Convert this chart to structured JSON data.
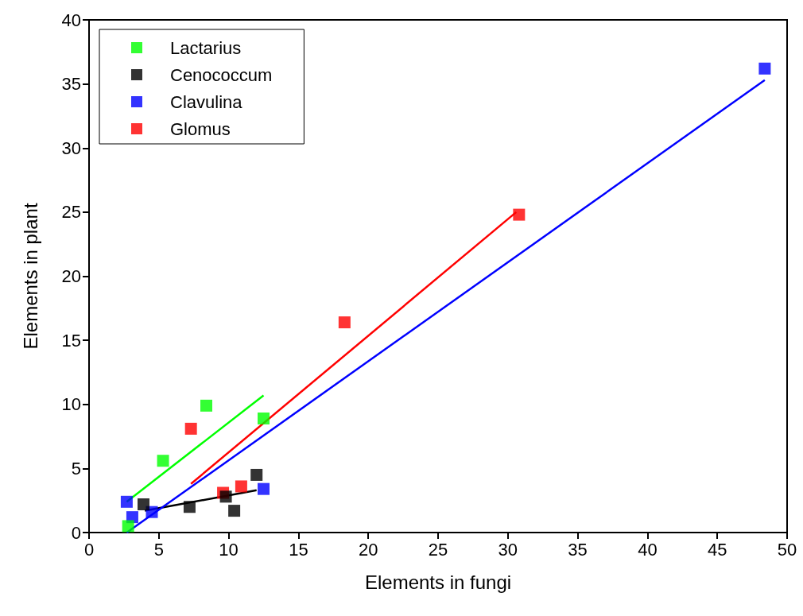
{
  "chart_data": {
    "type": "scatter",
    "xlabel": "Elements in fungi",
    "ylabel": "Elements in plant",
    "xlim": [
      0,
      50
    ],
    "xticks": [
      0,
      5,
      10,
      15,
      20,
      25,
      30,
      35,
      40,
      45,
      50
    ],
    "ylim": [
      0,
      40
    ],
    "yticks": [
      0,
      5,
      10,
      15,
      20,
      25,
      30,
      35,
      40
    ],
    "grid": false,
    "legend": "top left",
    "marker": "square",
    "series": [
      {
        "name": "Lactarius",
        "color": "#00ff00",
        "x": [
          2.8,
          5.3,
          8.4,
          12.5
        ],
        "values": [
          0.5,
          5.6,
          9.9,
          8.9
        ]
      },
      {
        "name": "Cenococcum",
        "color": "#000000",
        "x": [
          3.9,
          7.2,
          9.8,
          10.4,
          12.0
        ],
        "values": [
          2.2,
          2.0,
          2.8,
          1.7,
          4.5
        ]
      },
      {
        "name": "Clavulina",
        "color": "#0000ff",
        "x": [
          2.7,
          3.1,
          4.5,
          12.5,
          48.4
        ],
        "values": [
          2.4,
          1.2,
          1.6,
          3.4,
          36.2
        ]
      },
      {
        "name": "Glomus",
        "color": "#ff0000",
        "x": [
          7.3,
          9.6,
          10.9,
          18.3,
          30.8
        ],
        "values": [
          8.1,
          3.1,
          3.6,
          16.4,
          24.8
        ]
      },
      {
        "type": "line",
        "marker": "none",
        "line_style": "solid",
        "color": "#00ff00",
        "x": [
          2.7,
          12.5
        ],
        "values": [
          2.4,
          10.7
        ]
      },
      {
        "type": "line",
        "marker": "none",
        "line_style": "solid",
        "color": "#000000",
        "x": [
          4.0,
          12.0
        ],
        "values": [
          1.7,
          3.3
        ]
      },
      {
        "type": "line",
        "marker": "none",
        "line_style": "solid",
        "color": "#0000ff",
        "x": [
          2.7,
          48.4
        ],
        "values": [
          0.0,
          35.3
        ]
      },
      {
        "type": "line",
        "marker": "none",
        "line_style": "solid",
        "color": "#ff0000",
        "x": [
          7.3,
          30.6
        ],
        "values": [
          3.8,
          25.0
        ]
      }
    ]
  }
}
